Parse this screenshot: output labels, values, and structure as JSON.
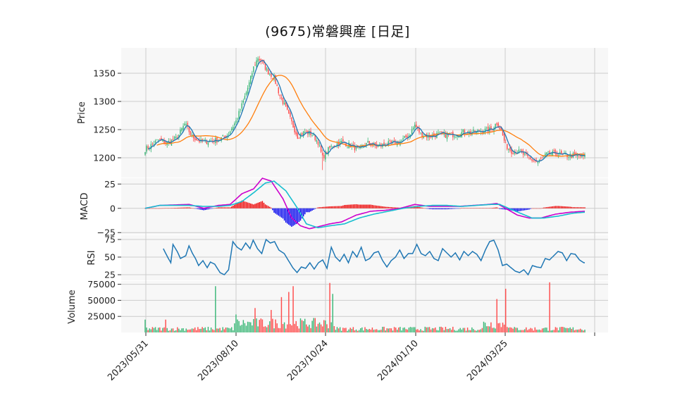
{
  "chart_data": {
    "type": "candlestick",
    "title": "(9675)常磐興産  [日足]",
    "colors": {
      "up": "#3cb878",
      "down": "#ff4d4d",
      "ma_short": "#1f77b4",
      "ma_long": "#ff7f0e",
      "macd": "#cc00cc",
      "signal": "#17becf",
      "hist_pos": "#ee0000",
      "hist_neg": "#0000ee",
      "rsi": "#1f77b4",
      "panel_bg": "#f7f7f7",
      "grid": "#cccccc"
    },
    "x_ticks": [
      "2023/05/31",
      "2023/08/10",
      "2023/10/24",
      "2024/01/10",
      "2024/03/25"
    ],
    "panels": {
      "price": {
        "ylabel": "Price",
        "ylim": [
          1165,
          1395
        ],
        "yticks": [
          1200,
          1250,
          1300,
          1350
        ],
        "anchors": [
          [
            0,
            1215
          ],
          [
            4,
            1222
          ],
          [
            9,
            1232
          ],
          [
            15,
            1226
          ],
          [
            22,
            1236
          ],
          [
            27,
            1260
          ],
          [
            32,
            1238
          ],
          [
            38,
            1228
          ],
          [
            44,
            1230
          ],
          [
            50,
            1232
          ],
          [
            56,
            1240
          ],
          [
            62,
            1265
          ],
          [
            67,
            1300
          ],
          [
            71,
            1332
          ],
          [
            74,
            1360
          ],
          [
            77,
            1378
          ],
          [
            80,
            1368
          ],
          [
            84,
            1352
          ],
          [
            88,
            1342
          ],
          [
            92,
            1310
          ],
          [
            96,
            1288
          ],
          [
            100,
            1262
          ],
          [
            104,
            1238
          ],
          [
            109,
            1246
          ],
          [
            114,
            1242
          ],
          [
            118,
            1228
          ],
          [
            121,
            1200
          ],
          [
            124,
            1212
          ],
          [
            128,
            1222
          ],
          [
            134,
            1228
          ],
          [
            140,
            1222
          ],
          [
            146,
            1214
          ],
          [
            152,
            1226
          ],
          [
            158,
            1220
          ],
          [
            164,
            1224
          ],
          [
            170,
            1226
          ],
          [
            175,
            1230
          ],
          [
            180,
            1240
          ],
          [
            184,
            1258
          ],
          [
            188,
            1242
          ],
          [
            194,
            1238
          ],
          [
            200,
            1242
          ],
          [
            206,
            1240
          ],
          [
            212,
            1242
          ],
          [
            218,
            1246
          ],
          [
            224,
            1245
          ],
          [
            230,
            1248
          ],
          [
            236,
            1250
          ],
          [
            240,
            1262
          ],
          [
            243,
            1248
          ],
          [
            246,
            1222
          ],
          [
            250,
            1212
          ],
          [
            256,
            1210
          ],
          [
            262,
            1198
          ],
          [
            268,
            1192
          ],
          [
            274,
            1206
          ],
          [
            280,
            1208
          ],
          [
            286,
            1204
          ],
          [
            292,
            1204
          ],
          [
            300,
            1202
          ]
        ]
      },
      "macd": {
        "ylabel": "MACD",
        "ylim": [
          -27,
          31
        ],
        "yticks": [
          -25,
          0,
          25
        ],
        "macd_anchors": [
          [
            0,
            0
          ],
          [
            10,
            3
          ],
          [
            30,
            4
          ],
          [
            40,
            0
          ],
          [
            50,
            3
          ],
          [
            58,
            4
          ],
          [
            66,
            15
          ],
          [
            74,
            20
          ],
          [
            80,
            31
          ],
          [
            86,
            28
          ],
          [
            94,
            10
          ],
          [
            100,
            -10
          ],
          [
            106,
            -18
          ],
          [
            112,
            -21
          ],
          [
            118,
            -19
          ],
          [
            126,
            -16
          ],
          [
            134,
            -14
          ],
          [
            144,
            -7
          ],
          [
            154,
            -3
          ],
          [
            164,
            -2
          ],
          [
            174,
            0
          ],
          [
            184,
            4
          ],
          [
            194,
            2
          ],
          [
            204,
            2
          ],
          [
            214,
            2
          ],
          [
            224,
            3
          ],
          [
            234,
            4
          ],
          [
            240,
            5
          ],
          [
            246,
            0
          ],
          [
            254,
            -7
          ],
          [
            262,
            -10
          ],
          [
            270,
            -10
          ],
          [
            280,
            -6
          ],
          [
            290,
            -4
          ],
          [
            300,
            -3
          ]
        ],
        "signal_anchors": [
          [
            0,
            0
          ],
          [
            10,
            3
          ],
          [
            30,
            3
          ],
          [
            40,
            2
          ],
          [
            50,
            2
          ],
          [
            58,
            3
          ],
          [
            66,
            7
          ],
          [
            74,
            16
          ],
          [
            82,
            26
          ],
          [
            88,
            28
          ],
          [
            96,
            18
          ],
          [
            104,
            0
          ],
          [
            110,
            -16
          ],
          [
            118,
            -20
          ],
          [
            126,
            -18
          ],
          [
            136,
            -16
          ],
          [
            146,
            -10
          ],
          [
            156,
            -6
          ],
          [
            166,
            -3
          ],
          [
            176,
            0
          ],
          [
            186,
            2
          ],
          [
            196,
            3
          ],
          [
            206,
            3
          ],
          [
            216,
            2
          ],
          [
            226,
            3
          ],
          [
            236,
            4
          ],
          [
            242,
            4
          ],
          [
            248,
            0
          ],
          [
            256,
            -5
          ],
          [
            264,
            -10
          ],
          [
            272,
            -10
          ],
          [
            282,
            -8
          ],
          [
            292,
            -5
          ],
          [
            300,
            -4
          ]
        ]
      },
      "rsi": {
        "ylabel": "RSI",
        "ylim": [
          17,
          81
        ],
        "yticks": [
          25,
          50,
          75
        ],
        "anchors": [
          [
            17,
            62
          ],
          [
            21,
            50
          ],
          [
            24,
            42
          ],
          [
            26,
            68
          ],
          [
            30,
            58
          ],
          [
            33,
            48
          ],
          [
            38,
            52
          ],
          [
            41,
            66
          ],
          [
            44,
            56
          ],
          [
            47,
            48
          ],
          [
            50,
            38
          ],
          [
            54,
            45
          ],
          [
            58,
            35
          ],
          [
            61,
            43
          ],
          [
            65,
            40
          ],
          [
            70,
            28
          ],
          [
            74,
            25
          ],
          [
            78,
            32
          ],
          [
            82,
            72
          ],
          [
            86,
            64
          ],
          [
            90,
            60
          ],
          [
            94,
            70
          ],
          [
            98,
            62
          ],
          [
            101,
            74
          ],
          [
            105,
            62
          ],
          [
            109,
            55
          ],
          [
            113,
            75
          ],
          [
            117,
            70
          ],
          [
            121,
            72
          ],
          [
            125,
            60
          ],
          [
            130,
            55
          ],
          [
            134,
            45
          ],
          [
            138,
            35
          ],
          [
            142,
            28
          ],
          [
            146,
            36
          ],
          [
            150,
            34
          ],
          [
            154,
            42
          ],
          [
            158,
            33
          ],
          [
            162,
            42
          ],
          [
            166,
            46
          ],
          [
            170,
            34
          ],
          [
            174,
            64
          ],
          [
            178,
            50
          ],
          [
            182,
            44
          ],
          [
            186,
            54
          ],
          [
            190,
            42
          ],
          [
            194,
            58
          ],
          [
            198,
            50
          ],
          [
            202,
            64
          ],
          [
            206,
            45
          ],
          [
            210,
            48
          ],
          [
            214,
            56
          ],
          [
            218,
            58
          ],
          [
            222,
            45
          ],
          [
            226,
            36
          ],
          [
            230,
            45
          ],
          [
            234,
            50
          ],
          [
            238,
            60
          ],
          [
            242,
            48
          ],
          [
            246,
            55
          ],
          [
            250,
            55
          ],
          [
            254,
            68
          ],
          [
            258,
            55
          ],
          [
            262,
            52
          ],
          [
            266,
            58
          ],
          [
            270,
            48
          ],
          [
            274,
            45
          ],
          [
            278,
            62
          ],
          [
            282,
            56
          ],
          [
            286,
            50
          ],
          [
            290,
            56
          ],
          [
            294,
            46
          ],
          [
            298,
            58
          ],
          [
            302,
            52
          ],
          [
            306,
            58
          ],
          [
            310,
            54
          ],
          [
            314,
            45
          ],
          [
            318,
            60
          ],
          [
            322,
            72
          ],
          [
            326,
            74
          ],
          [
            330,
            60
          ],
          [
            334,
            38
          ],
          [
            338,
            40
          ],
          [
            342,
            35
          ],
          [
            346,
            30
          ],
          [
            350,
            28
          ],
          [
            354,
            32
          ],
          [
            358,
            25
          ],
          [
            362,
            38
          ],
          [
            366,
            36
          ],
          [
            370,
            35
          ],
          [
            374,
            48
          ],
          [
            378,
            46
          ],
          [
            382,
            52
          ],
          [
            386,
            58
          ],
          [
            390,
            56
          ],
          [
            394,
            45
          ],
          [
            398,
            55
          ],
          [
            402,
            54
          ],
          [
            406,
            46
          ],
          [
            410,
            42
          ]
        ]
      },
      "volume": {
        "ylabel": "Volume",
        "ylim": [
          0,
          80000
        ],
        "yticks": [
          25000,
          50000,
          75000
        ],
        "spikes": [
          [
            0,
            20000
          ],
          [
            14,
            20000
          ],
          [
            48,
            72000
          ],
          [
            62,
            28000
          ],
          [
            75,
            38000
          ],
          [
            86,
            35000
          ],
          [
            93,
            55000
          ],
          [
            98,
            63000
          ],
          [
            101,
            72000
          ],
          [
            126,
            77000
          ],
          [
            128,
            60000
          ],
          [
            240,
            52000
          ],
          [
            246,
            68000
          ],
          [
            276,
            78000
          ]
        ]
      }
    }
  }
}
